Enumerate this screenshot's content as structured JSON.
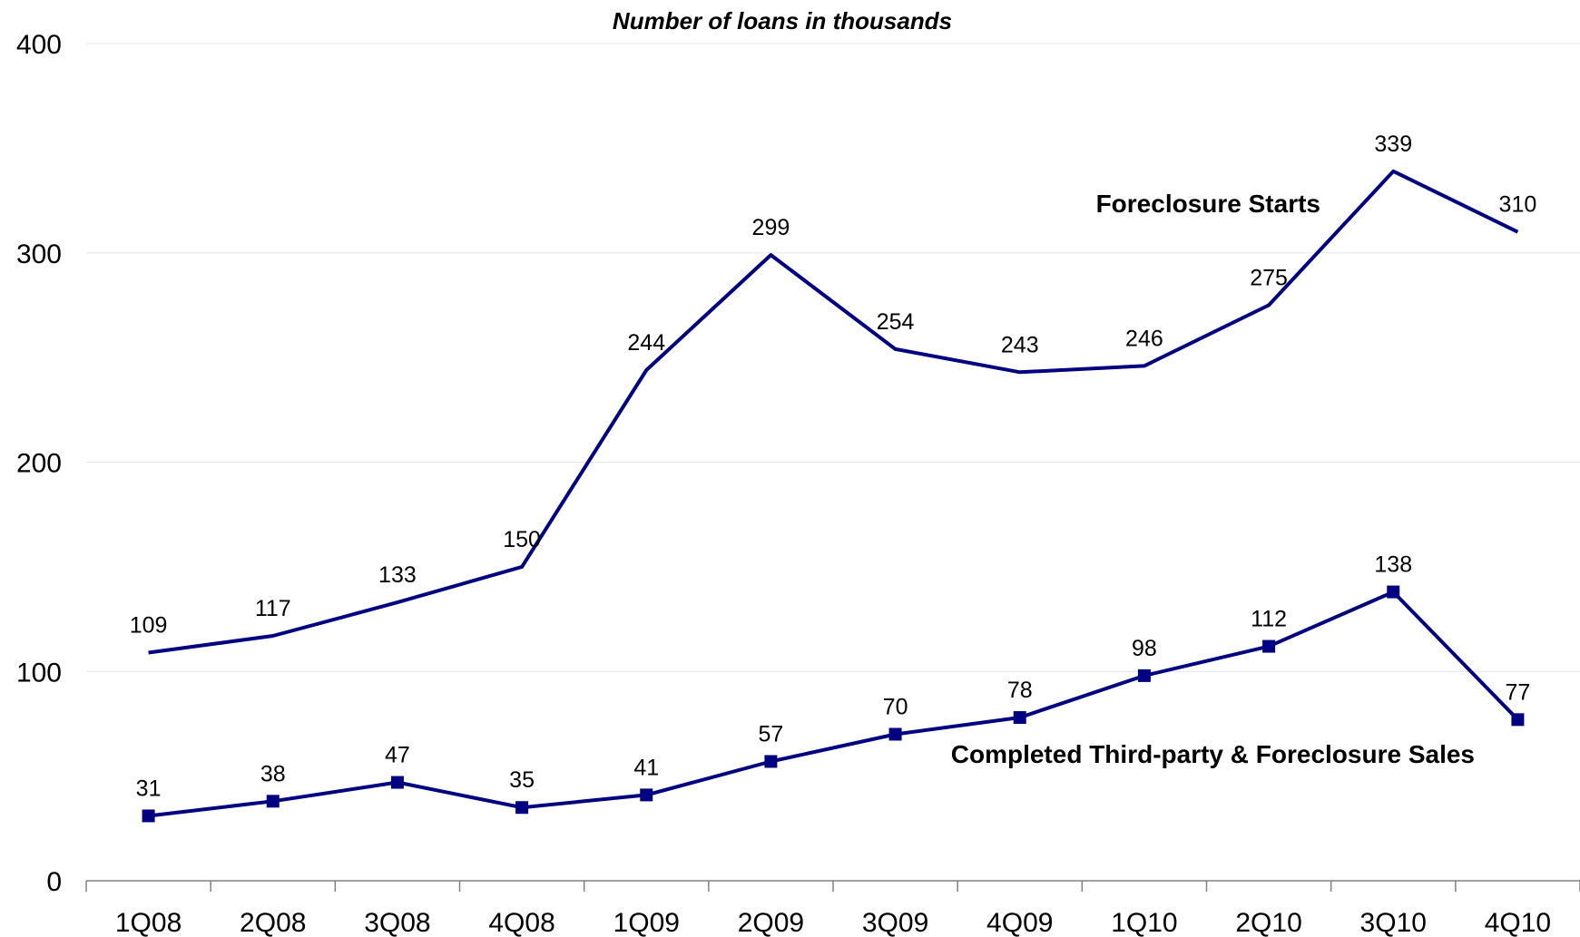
{
  "chart_data": {
    "type": "line",
    "title": "Number of loans in thousands",
    "categories": [
      "1Q08",
      "2Q08",
      "3Q08",
      "4Q08",
      "1Q09",
      "2Q09",
      "3Q09",
      "4Q09",
      "1Q10",
      "2Q10",
      "3Q10",
      "4Q10"
    ],
    "ylim": [
      0,
      400
    ],
    "yticks": [
      0,
      100,
      200,
      300,
      400
    ],
    "grid": true,
    "legend": "inline labels",
    "series": [
      {
        "name": "Foreclosure Starts",
        "values": [
          109,
          117,
          133,
          150,
          244,
          299,
          254,
          243,
          246,
          275,
          339,
          310
        ],
        "color": "#000080",
        "marker": "none"
      },
      {
        "name": "Completed Third-party & Foreclosure Sales",
        "values": [
          31,
          38,
          47,
          35,
          41,
          57,
          70,
          78,
          98,
          112,
          138,
          77
        ],
        "color": "#000080",
        "marker": "square"
      }
    ]
  }
}
